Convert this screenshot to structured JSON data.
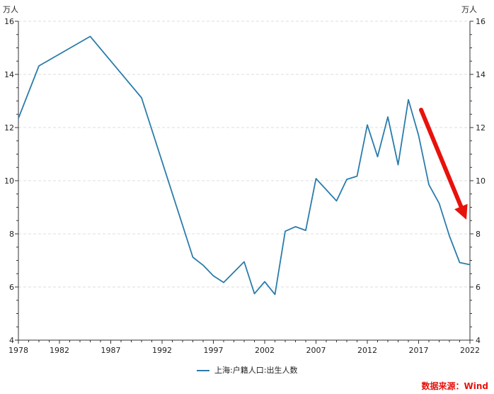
{
  "chart_data": {
    "type": "line",
    "title": "",
    "y_unit_left": "万人",
    "y_unit_right": "万人",
    "ylim": [
      4,
      16
    ],
    "y_ticks": [
      4,
      6,
      8,
      10,
      12,
      14,
      16
    ],
    "xlim": [
      1978,
      2022
    ],
    "x_ticks": [
      1978,
      1982,
      1987,
      1992,
      1997,
      2002,
      2007,
      2012,
      2017,
      2022
    ],
    "grid": "horizontal dashed",
    "legend_position": "bottom-center",
    "series": [
      {
        "name": "上海:户籍人口:出生人数",
        "color": "#2a7cab",
        "x": [
          1978,
          1980,
          1985,
          1990,
          1995,
          1996,
          1997,
          1998,
          2000,
          2001,
          2002,
          2003,
          2004,
          2005,
          2006,
          2007,
          2009,
          2010,
          2011,
          2012,
          2013,
          2014,
          2015,
          2016,
          2017,
          2018,
          2019,
          2020,
          2021,
          2022
        ],
        "values": [
          12.35,
          14.32,
          15.43,
          13.12,
          7.12,
          6.82,
          6.42,
          6.17,
          6.95,
          5.75,
          6.2,
          5.72,
          8.1,
          8.27,
          8.13,
          10.08,
          9.24,
          10.05,
          10.17,
          12.1,
          10.9,
          12.4,
          10.6,
          13.05,
          11.7,
          9.85,
          9.15,
          7.92,
          6.92,
          6.84
        ]
      }
    ],
    "annotation": {
      "type": "arrow",
      "color": "#e8120c",
      "meaning": "downward trend since 2017"
    }
  },
  "source_text": "数据来源：Wind"
}
